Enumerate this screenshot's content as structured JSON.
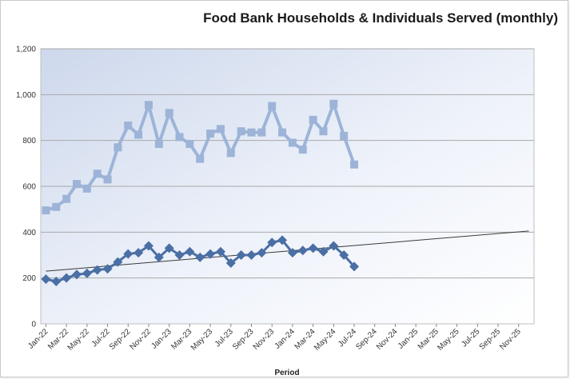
{
  "chart_data": {
    "type": "line",
    "title": "Food Bank Households & Individuals Served (monthly)",
    "xlabel": "Period",
    "ylabel": "",
    "ylim": [
      0,
      1200
    ],
    "y_ticks": [
      "0",
      "200",
      "400",
      "600",
      "800",
      "1,000",
      "1,200"
    ],
    "y_tick_values": [
      0,
      200,
      400,
      600,
      800,
      1000,
      1200
    ],
    "grid": true,
    "legend": "none",
    "x_tick_labels": [
      "Jan-22",
      "Mar-22",
      "May-22",
      "Jul-22",
      "Sep-22",
      "Nov-22",
      "Jan-23",
      "Mar-23",
      "May-23",
      "Jul-23",
      "Sep-23",
      "Nov-23",
      "Jan-24",
      "Mar-24",
      "May-24",
      "Jul-24",
      "Sep-24",
      "Nov-24",
      "Jan-25",
      "Mar-25",
      "May-25",
      "Jul-25",
      "Sep-25",
      "Nov-25"
    ],
    "x": [
      "Jan-22",
      "Feb-22",
      "Mar-22",
      "Apr-22",
      "May-22",
      "Jun-22",
      "Jul-22",
      "Aug-22",
      "Sep-22",
      "Oct-22",
      "Nov-22",
      "Dec-22",
      "Jan-23",
      "Feb-23",
      "Mar-23",
      "Apr-23",
      "May-23",
      "Jun-23",
      "Jul-23",
      "Aug-23",
      "Sep-23",
      "Oct-23",
      "Nov-23",
      "Dec-23",
      "Jan-24",
      "Feb-24",
      "Mar-24",
      "Apr-24",
      "May-24",
      "Jun-24",
      "Jul-24"
    ],
    "series": [
      {
        "color": "#9db4d8",
        "marker": "square",
        "values": [
          495,
          510,
          545,
          610,
          590,
          655,
          630,
          770,
          865,
          825,
          955,
          785,
          920,
          815,
          785,
          720,
          830,
          850,
          745,
          840,
          835,
          835,
          950,
          835,
          790,
          760,
          890,
          840,
          960,
          820,
          695
        ]
      },
      {
        "color": "#4a6fa5",
        "marker": "diamond",
        "values": [
          195,
          185,
          200,
          215,
          220,
          235,
          240,
          270,
          305,
          310,
          340,
          290,
          330,
          300,
          315,
          290,
          305,
          315,
          265,
          300,
          300,
          310,
          355,
          365,
          310,
          320,
          330,
          315,
          340,
          300,
          250
        ]
      }
    ],
    "trendline": {
      "type": "linear",
      "color": "#3a3a3a",
      "x_start": "Jan-22",
      "x_end": "Dec-25",
      "y_start": 230,
      "y_end": 405
    }
  }
}
